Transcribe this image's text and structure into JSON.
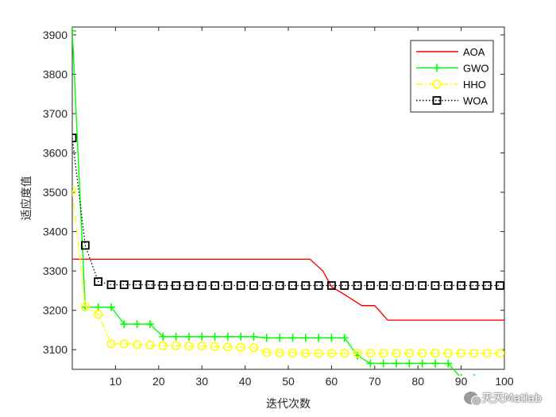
{
  "chart_data": {
    "type": "line",
    "xlabel": "迭代次数",
    "ylabel": "适应度值",
    "xlim": [
      0,
      100
    ],
    "ylim": [
      3050,
      3920
    ],
    "xticks": [
      10,
      20,
      30,
      40,
      50,
      60,
      70,
      80,
      90,
      100
    ],
    "yticks": [
      3100,
      3200,
      3300,
      3400,
      3500,
      3600,
      3700,
      3800,
      3900
    ],
    "grid": false,
    "legend_position": "top-right",
    "series": [
      {
        "name": "AOA",
        "color": "#ff0000",
        "style": "solid",
        "marker": "none",
        "points": [
          [
            0,
            3330
          ],
          [
            55,
            3330
          ],
          [
            58,
            3300
          ],
          [
            60,
            3260
          ],
          [
            63,
            3240
          ],
          [
            67,
            3212
          ],
          [
            70,
            3212
          ],
          [
            73,
            3175
          ],
          [
            100,
            3175
          ]
        ]
      },
      {
        "name": "GWO",
        "color": "#00ff00",
        "style": "solid",
        "marker": "plus",
        "points": [
          [
            0,
            3910
          ],
          [
            3,
            3208
          ],
          [
            6,
            3208
          ],
          [
            9,
            3208
          ],
          [
            12,
            3165
          ],
          [
            15,
            3165
          ],
          [
            18,
            3165
          ],
          [
            21,
            3133
          ],
          [
            24,
            3133
          ],
          [
            27,
            3133
          ],
          [
            30,
            3133
          ],
          [
            33,
            3133
          ],
          [
            36,
            3133
          ],
          [
            39,
            3133
          ],
          [
            42,
            3133
          ],
          [
            45,
            3130
          ],
          [
            48,
            3130
          ],
          [
            51,
            3130
          ],
          [
            54,
            3130
          ],
          [
            57,
            3130
          ],
          [
            60,
            3130
          ],
          [
            63,
            3130
          ],
          [
            66,
            3085
          ],
          [
            69,
            3065
          ],
          [
            72,
            3065
          ],
          [
            75,
            3065
          ],
          [
            78,
            3065
          ],
          [
            81,
            3065
          ],
          [
            84,
            3065
          ],
          [
            87,
            3065
          ],
          [
            90,
            3028
          ],
          [
            93,
            3028
          ],
          [
            96,
            3010
          ],
          [
            99,
            3008
          ]
        ]
      },
      {
        "name": "HHO",
        "color": "#ffff00",
        "style": "dashdot",
        "marker": "circle",
        "points": [
          [
            0,
            3505
          ],
          [
            3,
            3210
          ],
          [
            6,
            3190
          ],
          [
            9,
            3115
          ],
          [
            12,
            3115
          ],
          [
            15,
            3113
          ],
          [
            18,
            3112
          ],
          [
            21,
            3110
          ],
          [
            24,
            3110
          ],
          [
            27,
            3109
          ],
          [
            30,
            3109
          ],
          [
            33,
            3108
          ],
          [
            36,
            3107
          ],
          [
            39,
            3106
          ],
          [
            42,
            3105
          ],
          [
            45,
            3093
          ],
          [
            48,
            3092
          ],
          [
            51,
            3092
          ],
          [
            54,
            3091
          ],
          [
            57,
            3091
          ],
          [
            60,
            3091
          ],
          [
            63,
            3091
          ],
          [
            66,
            3091
          ],
          [
            69,
            3091
          ],
          [
            72,
            3091
          ],
          [
            75,
            3091
          ],
          [
            78,
            3091
          ],
          [
            81,
            3091
          ],
          [
            84,
            3091
          ],
          [
            87,
            3091
          ],
          [
            90,
            3091
          ],
          [
            93,
            3091
          ],
          [
            96,
            3091
          ],
          [
            99,
            3091
          ]
        ]
      },
      {
        "name": "WOA",
        "color": "#000000",
        "style": "dotted",
        "marker": "square",
        "points": [
          [
            0,
            3638
          ],
          [
            3,
            3365
          ],
          [
            6,
            3273
          ],
          [
            9,
            3265
          ],
          [
            12,
            3265
          ],
          [
            15,
            3265
          ],
          [
            18,
            3265
          ],
          [
            21,
            3263
          ],
          [
            24,
            3263
          ],
          [
            27,
            3263
          ],
          [
            30,
            3263
          ],
          [
            33,
            3263
          ],
          [
            36,
            3263
          ],
          [
            39,
            3263
          ],
          [
            42,
            3263
          ],
          [
            45,
            3263
          ],
          [
            48,
            3263
          ],
          [
            51,
            3263
          ],
          [
            54,
            3263
          ],
          [
            57,
            3263
          ],
          [
            60,
            3263
          ],
          [
            63,
            3263
          ],
          [
            66,
            3263
          ],
          [
            69,
            3263
          ],
          [
            72,
            3263
          ],
          [
            75,
            3263
          ],
          [
            78,
            3263
          ],
          [
            81,
            3263
          ],
          [
            84,
            3263
          ],
          [
            87,
            3263
          ],
          [
            90,
            3263
          ],
          [
            93,
            3263
          ],
          [
            96,
            3263
          ],
          [
            99,
            3263
          ]
        ]
      }
    ]
  },
  "watermark": {
    "icon": "wechat-icon",
    "text": "天天Matlab"
  }
}
